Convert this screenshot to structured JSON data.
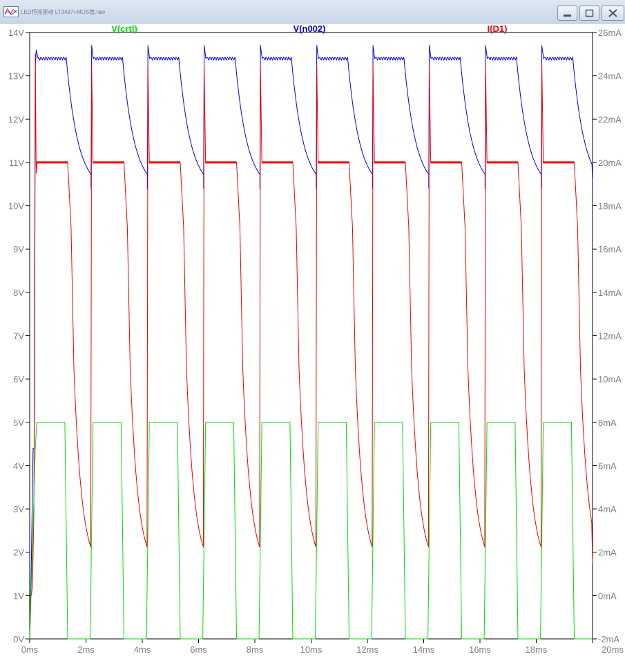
{
  "window": {
    "title": "LED恒流驱动 LT3497+MOS管.raw",
    "controls": {
      "minimize": "minimize-icon",
      "maximize": "maximize-icon",
      "close": "close-icon"
    }
  },
  "chart_data": {
    "type": "line",
    "title": "",
    "x_axis": {
      "label": "",
      "unit": "ms",
      "range": [
        0,
        20
      ],
      "ticks": [
        "0ms",
        "2ms",
        "4ms",
        "6ms",
        "8ms",
        "10ms",
        "12ms",
        "14ms",
        "16ms",
        "18ms",
        "20ms"
      ]
    },
    "y_left": {
      "label": "",
      "unit": "V",
      "range": [
        0,
        14
      ],
      "ticks": [
        "0V",
        "1V",
        "2V",
        "3V",
        "4V",
        "5V",
        "6V",
        "7V",
        "8V",
        "9V",
        "10V",
        "11V",
        "12V",
        "13V",
        "14V"
      ]
    },
    "y_right": {
      "label": "",
      "unit": "mA",
      "range": [
        -2,
        26
      ],
      "ticks": [
        "-2mA",
        "0mA",
        "2mA",
        "4mA",
        "6mA",
        "8mA",
        "10mA",
        "12mA",
        "14mA",
        "16mA",
        "18mA",
        "20mA",
        "22mA",
        "24mA",
        "26mA"
      ]
    },
    "grid": false,
    "legend": "top",
    "period_ms": 2.0,
    "pulse_starts_ms": [
      0.2,
      2.2,
      4.2,
      6.2,
      8.2,
      10.2,
      12.2,
      14.2,
      16.2,
      18.2
    ],
    "series": [
      {
        "name": "V(crtl)",
        "color": "#00dd00",
        "axis": "left",
        "stroke_width": 1,
        "points": [
          [
            0,
            0
          ],
          [
            0.05,
            1
          ],
          [
            0.2,
            4.4
          ],
          [
            0.25,
            5
          ],
          [
            1.25,
            5
          ],
          [
            1.35,
            0
          ],
          [
            2.15,
            0
          ],
          [
            2.25,
            5
          ],
          [
            3.25,
            5
          ],
          [
            3.35,
            0
          ],
          [
            4.15,
            0
          ],
          [
            4.25,
            5
          ],
          [
            5.25,
            5
          ],
          [
            5.35,
            0
          ],
          [
            6.15,
            0
          ],
          [
            6.25,
            5
          ],
          [
            7.25,
            5
          ],
          [
            7.35,
            0
          ],
          [
            8.15,
            0
          ],
          [
            8.25,
            5
          ],
          [
            9.25,
            5
          ],
          [
            9.35,
            0
          ],
          [
            10.15,
            0
          ],
          [
            10.25,
            5
          ],
          [
            11.25,
            5
          ],
          [
            11.35,
            0
          ],
          [
            12.15,
            0
          ],
          [
            12.25,
            5
          ],
          [
            13.25,
            5
          ],
          [
            13.35,
            0
          ],
          [
            14.15,
            0
          ],
          [
            14.25,
            5
          ],
          [
            15.25,
            5
          ],
          [
            15.35,
            0
          ],
          [
            16.15,
            0
          ],
          [
            16.25,
            5
          ],
          [
            17.25,
            5
          ],
          [
            17.35,
            0
          ],
          [
            18.15,
            0
          ],
          [
            18.25,
            5
          ],
          [
            19.25,
            5
          ],
          [
            19.35,
            0
          ],
          [
            20,
            0
          ]
        ]
      },
      {
        "name": "V(n002)",
        "color": "#0000ee",
        "axis": "left",
        "stroke_width": 1,
        "on_level": 13.4,
        "peak": 13.7,
        "first_peak": 13.6,
        "decay_tau_ms": 0.42,
        "decay_floor": 10.35,
        "end_level": 10.55
      },
      {
        "name": "I(D1)",
        "color": "#ee0000",
        "axis": "right",
        "stroke_width": 2,
        "on_level_mA": 20.0,
        "spike_peak_mA": 25.0,
        "decay_tau_ms": 0.2,
        "decay_floor_mA": 1.15,
        "end_level_mA": 1.5
      }
    ]
  }
}
